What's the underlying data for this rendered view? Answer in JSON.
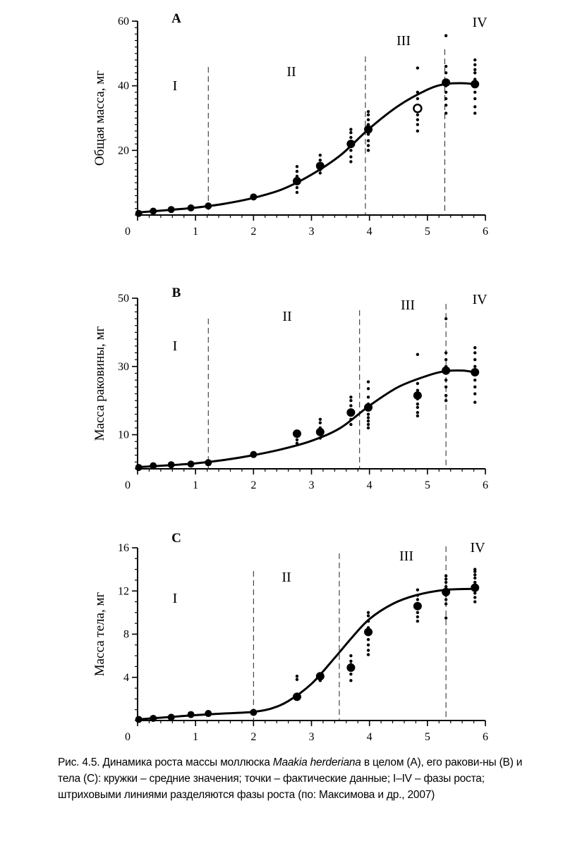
{
  "charts": {
    "chart_data": [
      {
        "type": "scatter",
        "panel_label": "A",
        "ylabel": "Общая масса, мг",
        "xlim": [
          0,
          6
        ],
        "ylim": [
          0,
          60
        ],
        "x_ticks": [
          "0",
          "1",
          "2",
          "3",
          "4",
          "5",
          "6"
        ],
        "y_ticks": [
          "20",
          "40",
          "60"
        ],
        "phases": [
          "I",
          "II",
          "III",
          "IV"
        ],
        "phase_boundaries": [
          1.22,
          3.93,
          5.3
        ],
        "means": [
          [
            0.02,
            0.5
          ],
          [
            0.27,
            1.2
          ],
          [
            0.58,
            1.7
          ],
          [
            0.92,
            2.2
          ],
          [
            1.22,
            2.8
          ],
          [
            2.0,
            5.6
          ],
          [
            2.75,
            10.5
          ],
          [
            3.15,
            15.2
          ],
          [
            3.68,
            22
          ],
          [
            3.98,
            26.5
          ],
          [
            4.83,
            33
          ],
          [
            5.32,
            41
          ],
          [
            5.82,
            40.5
          ]
        ],
        "points": [
          [
            2.75,
            7
          ],
          [
            2.75,
            8.5
          ],
          [
            2.75,
            12
          ],
          [
            2.75,
            13.5
          ],
          [
            2.75,
            15
          ],
          [
            3.15,
            13
          ],
          [
            3.15,
            14
          ],
          [
            3.15,
            16
          ],
          [
            3.15,
            17
          ],
          [
            3.15,
            18.5
          ],
          [
            3.68,
            16.5
          ],
          [
            3.68,
            18
          ],
          [
            3.68,
            20
          ],
          [
            3.68,
            24
          ],
          [
            3.68,
            25.5
          ],
          [
            3.68,
            26.5
          ],
          [
            3.98,
            20
          ],
          [
            3.98,
            21.5
          ],
          [
            3.98,
            23
          ],
          [
            3.98,
            25
          ],
          [
            3.98,
            28
          ],
          [
            3.98,
            29.5
          ],
          [
            3.98,
            31
          ],
          [
            3.98,
            32
          ],
          [
            4.83,
            26
          ],
          [
            4.83,
            28
          ],
          [
            4.83,
            29.5
          ],
          [
            4.83,
            31
          ],
          [
            4.83,
            34
          ],
          [
            4.83,
            36
          ],
          [
            4.83,
            38
          ],
          [
            4.83,
            45.5
          ],
          [
            5.32,
            31.5
          ],
          [
            5.32,
            34
          ],
          [
            5.32,
            36
          ],
          [
            5.32,
            38
          ],
          [
            5.32,
            40
          ],
          [
            5.32,
            44
          ],
          [
            5.32,
            46
          ],
          [
            5.32,
            55.5
          ],
          [
            5.82,
            31.5
          ],
          [
            5.82,
            33.5
          ],
          [
            5.82,
            36
          ],
          [
            5.82,
            38
          ],
          [
            5.82,
            40
          ],
          [
            5.82,
            42
          ],
          [
            5.82,
            44
          ],
          [
            5.82,
            45
          ],
          [
            5.82,
            46.5
          ],
          [
            5.82,
            48
          ]
        ],
        "curve": [
          [
            0,
            0.8
          ],
          [
            0.5,
            1.5
          ],
          [
            1,
            2.3
          ],
          [
            1.5,
            3.5
          ],
          [
            2,
            5.3
          ],
          [
            2.5,
            8
          ],
          [
            3,
            12.5
          ],
          [
            3.5,
            18.5
          ],
          [
            4,
            26.8
          ],
          [
            4.5,
            33.8
          ],
          [
            5,
            38.8
          ],
          [
            5.3,
            40.5
          ],
          [
            5.6,
            40.8
          ],
          [
            5.82,
            40.5
          ]
        ]
      },
      {
        "type": "scatter",
        "panel_label": "B",
        "ylabel": "Масса раковины, мг",
        "xlim": [
          0,
          6
        ],
        "ylim": [
          0,
          50
        ],
        "x_ticks": [
          "0",
          "1",
          "2",
          "3",
          "4",
          "5",
          "6"
        ],
        "y_ticks": [
          "10",
          "30",
          "50"
        ],
        "phases": [
          "I",
          "II",
          "III",
          "IV"
        ],
        "phase_boundaries": [
          1.22,
          3.83,
          5.32
        ],
        "means": [
          [
            0.02,
            0.4
          ],
          [
            0.27,
            0.9
          ],
          [
            0.58,
            1.2
          ],
          [
            0.92,
            1.4
          ],
          [
            1.22,
            1.8
          ],
          [
            2.0,
            4.2
          ],
          [
            2.75,
            10.3
          ],
          [
            3.15,
            10.8
          ],
          [
            3.68,
            16.5
          ],
          [
            3.98,
            18
          ],
          [
            4.83,
            21.5
          ],
          [
            5.32,
            28.8
          ],
          [
            5.82,
            28.3
          ]
        ],
        "points": [
          [
            2.75,
            7.5
          ],
          [
            2.75,
            8.5
          ],
          [
            2.75,
            9.5
          ],
          [
            2.75,
            11
          ],
          [
            3.15,
            9
          ],
          [
            3.15,
            10
          ],
          [
            3.15,
            12
          ],
          [
            3.15,
            13.5
          ],
          [
            3.15,
            14.5
          ],
          [
            3.68,
            13
          ],
          [
            3.68,
            14.5
          ],
          [
            3.68,
            17
          ],
          [
            3.68,
            18.5
          ],
          [
            3.68,
            20
          ],
          [
            3.68,
            21
          ],
          [
            3.98,
            12
          ],
          [
            3.98,
            13
          ],
          [
            3.98,
            14
          ],
          [
            3.98,
            15
          ],
          [
            3.98,
            16
          ],
          [
            3.98,
            19
          ],
          [
            3.98,
            21
          ],
          [
            3.98,
            23.5
          ],
          [
            3.98,
            25.5
          ],
          [
            4.83,
            15.5
          ],
          [
            4.83,
            16.5
          ],
          [
            4.83,
            18
          ],
          [
            4.83,
            19
          ],
          [
            4.83,
            20.5
          ],
          [
            4.83,
            23
          ],
          [
            4.83,
            25
          ],
          [
            4.83,
            33.5
          ],
          [
            5.32,
            20
          ],
          [
            5.32,
            21.5
          ],
          [
            5.32,
            24
          ],
          [
            5.32,
            26
          ],
          [
            5.32,
            28
          ],
          [
            5.32,
            30
          ],
          [
            5.32,
            32
          ],
          [
            5.32,
            34
          ],
          [
            5.32,
            44
          ],
          [
            5.82,
            19.5
          ],
          [
            5.82,
            22
          ],
          [
            5.82,
            24
          ],
          [
            5.82,
            26
          ],
          [
            5.82,
            28
          ],
          [
            5.82,
            30
          ],
          [
            5.82,
            32
          ],
          [
            5.82,
            34
          ],
          [
            5.82,
            35.5
          ]
        ],
        "curve": [
          [
            0,
            0.5
          ],
          [
            0.5,
            1
          ],
          [
            1,
            1.6
          ],
          [
            1.5,
            2.6
          ],
          [
            2,
            4
          ],
          [
            2.5,
            5.8
          ],
          [
            3,
            8.2
          ],
          [
            3.5,
            12
          ],
          [
            4,
            18.5
          ],
          [
            4.5,
            24
          ],
          [
            5,
            27.3
          ],
          [
            5.3,
            28.6
          ],
          [
            5.6,
            28.8
          ],
          [
            5.82,
            28.3
          ]
        ]
      },
      {
        "type": "scatter",
        "panel_label": "C",
        "ylabel": "Масса тела, мг",
        "xlim": [
          0,
          6
        ],
        "ylim": [
          0,
          16
        ],
        "x_ticks": [
          "0",
          "1",
          "2",
          "3",
          "4",
          "5",
          "6"
        ],
        "y_ticks": [
          "4",
          "8",
          "12",
          "16"
        ],
        "phases": [
          "I",
          "II",
          "III",
          "IV"
        ],
        "phase_boundaries": [
          2.0,
          3.48,
          5.32
        ],
        "means": [
          [
            0.02,
            0.1
          ],
          [
            0.27,
            0.2
          ],
          [
            0.58,
            0.3
          ],
          [
            0.92,
            0.55
          ],
          [
            1.22,
            0.65
          ],
          [
            2.0,
            0.75
          ],
          [
            2.75,
            2.2
          ],
          [
            3.15,
            4.1
          ],
          [
            3.68,
            4.9
          ],
          [
            3.98,
            8.2
          ],
          [
            4.83,
            10.6
          ],
          [
            5.32,
            11.9
          ],
          [
            5.82,
            12.3
          ]
        ],
        "points": [
          [
            2.75,
            2
          ],
          [
            2.75,
            3.8
          ],
          [
            2.75,
            4.1
          ],
          [
            3.15,
            3.7
          ],
          [
            3.15,
            4.3
          ],
          [
            3.68,
            3.7
          ],
          [
            3.68,
            4.3
          ],
          [
            3.68,
            5.2
          ],
          [
            3.68,
            5.5
          ],
          [
            3.68,
            6
          ],
          [
            3.98,
            6.1
          ],
          [
            3.98,
            6.5
          ],
          [
            3.98,
            7
          ],
          [
            3.98,
            7.5
          ],
          [
            3.98,
            8
          ],
          [
            3.98,
            8.6
          ],
          [
            3.98,
            9.2
          ],
          [
            3.98,
            9.7
          ],
          [
            3.98,
            10
          ],
          [
            4.83,
            9.2
          ],
          [
            4.83,
            9.6
          ],
          [
            4.83,
            10
          ],
          [
            4.83,
            10.4
          ],
          [
            4.83,
            10.8
          ],
          [
            4.83,
            11.2
          ],
          [
            4.83,
            11.6
          ],
          [
            4.83,
            12.1
          ],
          [
            5.32,
            9.5
          ],
          [
            5.32,
            10.8
          ],
          [
            5.32,
            11.2
          ],
          [
            5.32,
            11.6
          ],
          [
            5.32,
            12
          ],
          [
            5.32,
            12.4
          ],
          [
            5.32,
            12.8
          ],
          [
            5.32,
            13.1
          ],
          [
            5.32,
            13.4
          ],
          [
            5.82,
            11
          ],
          [
            5.82,
            11.4
          ],
          [
            5.82,
            11.8
          ],
          [
            5.82,
            12.1
          ],
          [
            5.82,
            12.5
          ],
          [
            5.82,
            12.8
          ],
          [
            5.82,
            13.2
          ],
          [
            5.82,
            13.5
          ],
          [
            5.82,
            13.8
          ],
          [
            5.82,
            14
          ]
        ],
        "curve": [
          [
            0,
            0.1
          ],
          [
            0.5,
            0.3
          ],
          [
            1,
            0.5
          ],
          [
            1.5,
            0.65
          ],
          [
            2,
            0.8
          ],
          [
            2.3,
            1.1
          ],
          [
            2.6,
            1.8
          ],
          [
            3,
            3.4
          ],
          [
            3.4,
            5.8
          ],
          [
            3.7,
            7.7
          ],
          [
            4,
            9.4
          ],
          [
            4.4,
            10.8
          ],
          [
            4.8,
            11.6
          ],
          [
            5.3,
            12.1
          ],
          [
            5.82,
            12.2
          ]
        ]
      }
    ]
  },
  "caption": {
    "part1": "Рис. 4.5. Динамика роста массы моллюска ",
    "species": "Maakia herderiana",
    "part2": " в целом (A), его ракови-ны (B) и тела (C): кружки – средние значения; точки – фактические данные; I–IV – фазы роста; штриховыми линиями разделяются фазы роста (по: Максимова и др., 2007)"
  }
}
